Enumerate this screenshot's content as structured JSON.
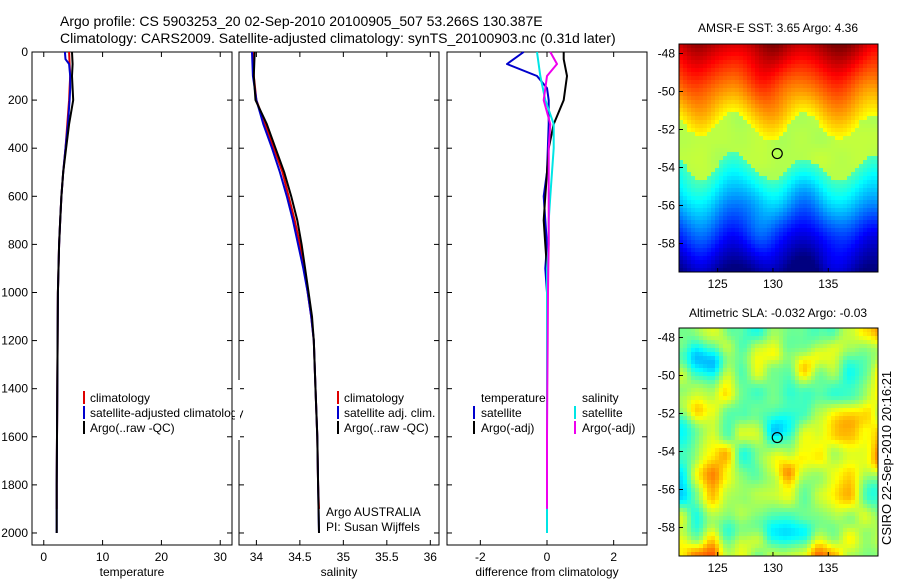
{
  "header": {
    "title_line1": "Argo profile: CS 5903253_20 02-Sep-2010 20100905_507 53.266S 130.387E",
    "title_line2": "Climatology: CARS2009. Satellite-adjusted climatology: synTS_20100903.nc (0.31d later)"
  },
  "side_label": "CSIRO 22-Sep-2010 20:16:21",
  "colors": {
    "red": "#dd0000",
    "blue": "#0000cc",
    "black": "#000000",
    "cyan": "#00e5e5",
    "magenta": "#ee00ee"
  },
  "chart_data": [
    {
      "type": "line",
      "id": "temperature",
      "xlabel": "temperature",
      "ylabel": "",
      "xlim": [
        -2,
        32
      ],
      "ylim": [
        0,
        2050
      ],
      "y_inverted": true,
      "xticks": [
        0,
        10,
        20,
        30
      ],
      "yticks": [
        0,
        200,
        400,
        600,
        800,
        1000,
        1200,
        1400,
        1600,
        1800,
        2000
      ],
      "legend": [
        "climatology",
        "satellite-adjusted climatology",
        "Argo(..raw -QC)"
      ],
      "legend_position": "lower-right",
      "series": [
        {
          "name": "climatology",
          "color": "red",
          "points": [
            [
              4.3,
              0
            ],
            [
              4.4,
              50
            ],
            [
              4.5,
              100
            ],
            [
              4.4,
              150
            ],
            [
              4.3,
              200
            ],
            [
              4.0,
              300
            ],
            [
              3.7,
              400
            ],
            [
              3.3,
              500
            ],
            [
              3.0,
              600
            ],
            [
              2.8,
              700
            ],
            [
              2.6,
              800
            ],
            [
              2.5,
              900
            ],
            [
              2.4,
              1000
            ],
            [
              2.35,
              1200
            ],
            [
              2.3,
              1400
            ],
            [
              2.25,
              1600
            ],
            [
              2.2,
              1800
            ],
            [
              2.2,
              1900
            ]
          ]
        },
        {
          "name": "satellite-adjusted climatology",
          "color": "blue",
          "points": [
            [
              3.6,
              0
            ],
            [
              3.7,
              30
            ],
            [
              4.3,
              50
            ],
            [
              4.5,
              100
            ],
            [
              4.5,
              150
            ],
            [
              4.4,
              200
            ],
            [
              4.1,
              300
            ],
            [
              3.7,
              400
            ],
            [
              3.3,
              500
            ],
            [
              3.0,
              600
            ],
            [
              2.8,
              700
            ],
            [
              2.6,
              800
            ],
            [
              2.5,
              900
            ],
            [
              2.4,
              1000
            ],
            [
              2.35,
              1200
            ],
            [
              2.3,
              1400
            ],
            [
              2.25,
              1600
            ],
            [
              2.2,
              1800
            ],
            [
              2.2,
              2000
            ]
          ]
        },
        {
          "name": "Argo(..raw -QC)",
          "color": "black",
          "points": [
            [
              4.8,
              0
            ],
            [
              4.9,
              50
            ],
            [
              4.8,
              100
            ],
            [
              4.9,
              150
            ],
            [
              5.0,
              200
            ],
            [
              4.3,
              300
            ],
            [
              3.8,
              400
            ],
            [
              3.3,
              500
            ],
            [
              3.0,
              600
            ],
            [
              2.8,
              700
            ],
            [
              2.6,
              800
            ],
            [
              2.5,
              900
            ],
            [
              2.4,
              1000
            ],
            [
              2.35,
              1200
            ],
            [
              2.3,
              1400
            ],
            [
              2.25,
              1600
            ],
            [
              2.2,
              1800
            ],
            [
              2.2,
              2000
            ]
          ]
        }
      ]
    },
    {
      "type": "line",
      "id": "salinity",
      "xlabel": "salinity",
      "ylabel": "",
      "xlim": [
        33.8,
        36.1
      ],
      "ylim": [
        0,
        2050
      ],
      "y_inverted": true,
      "xticks": [
        34,
        34.5,
        35,
        35.5,
        36
      ],
      "yticks": [
        0,
        200,
        400,
        600,
        800,
        1000,
        1200,
        1400,
        1600,
        1800,
        2000
      ],
      "legend": [
        "climatology",
        "satellite adj. clim.",
        "Argo(..raw -QC)"
      ],
      "legend_position": "lower-right",
      "annotations": [
        "Argo AUSTRALIA",
        "PI: Susan Wijffels"
      ],
      "series": [
        {
          "name": "climatology",
          "color": "red",
          "points": [
            [
              33.96,
              0
            ],
            [
              33.97,
              100
            ],
            [
              34.0,
              200
            ],
            [
              34.1,
              300
            ],
            [
              34.2,
              400
            ],
            [
              34.3,
              500
            ],
            [
              34.37,
              600
            ],
            [
              34.44,
              700
            ],
            [
              34.5,
              800
            ],
            [
              34.55,
              900
            ],
            [
              34.59,
              1000
            ],
            [
              34.63,
              1100
            ],
            [
              34.66,
              1200
            ],
            [
              34.68,
              1400
            ],
            [
              34.7,
              1600
            ],
            [
              34.71,
              1800
            ],
            [
              34.72,
              1900
            ]
          ]
        },
        {
          "name": "satellite adj. clim.",
          "color": "blue",
          "points": [
            [
              33.95,
              0
            ],
            [
              33.96,
              100
            ],
            [
              34.0,
              200
            ],
            [
              34.08,
              300
            ],
            [
              34.18,
              400
            ],
            [
              34.27,
              500
            ],
            [
              34.35,
              600
            ],
            [
              34.42,
              700
            ],
            [
              34.48,
              800
            ],
            [
              34.54,
              900
            ],
            [
              34.59,
              1000
            ],
            [
              34.63,
              1100
            ],
            [
              34.66,
              1200
            ],
            [
              34.68,
              1400
            ],
            [
              34.7,
              1600
            ],
            [
              34.71,
              1800
            ],
            [
              34.72,
              2000
            ]
          ]
        },
        {
          "name": "Argo(..raw -QC)",
          "color": "black",
          "points": [
            [
              33.98,
              0
            ],
            [
              33.97,
              100
            ],
            [
              33.99,
              200
            ],
            [
              34.12,
              300
            ],
            [
              34.22,
              400
            ],
            [
              34.32,
              500
            ],
            [
              34.4,
              600
            ],
            [
              34.47,
              700
            ],
            [
              34.52,
              800
            ],
            [
              34.56,
              900
            ],
            [
              34.6,
              1000
            ],
            [
              34.64,
              1100
            ],
            [
              34.66,
              1200
            ],
            [
              34.68,
              1400
            ],
            [
              34.7,
              1600
            ],
            [
              34.71,
              1800
            ],
            [
              34.72,
              2000
            ]
          ]
        }
      ]
    },
    {
      "type": "line",
      "id": "difference",
      "xlabel": "difference from climatology",
      "ylabel": "",
      "xlim": [
        -3,
        3
      ],
      "ylim": [
        0,
        2050
      ],
      "y_inverted": true,
      "xticks": [
        -2,
        0,
        2
      ],
      "yticks": [
        0,
        200,
        400,
        600,
        800,
        1000,
        1200,
        1400,
        1600,
        1800,
        2000
      ],
      "legend_groups": [
        {
          "heading": "temperature",
          "entries": [
            "satellite",
            "Argo(-adj)"
          ]
        },
        {
          "heading": "salinity",
          "entries": [
            "satellite",
            "Argo(-adj)"
          ]
        }
      ],
      "legend_position": "lower-left",
      "series": [
        {
          "name": "temperature satellite",
          "color": "blue",
          "points": [
            [
              -0.7,
              0
            ],
            [
              -1.2,
              50
            ],
            [
              -0.3,
              100
            ],
            [
              0.0,
              150
            ],
            [
              0.05,
              200
            ],
            [
              0.05,
              300
            ],
            [
              0.0,
              500
            ],
            [
              -0.1,
              600
            ],
            [
              -0.05,
              700
            ],
            [
              0.0,
              800
            ],
            [
              -0.05,
              900
            ],
            [
              0.0,
              1000
            ],
            [
              0.0,
              1200
            ],
            [
              0.0,
              1400
            ],
            [
              0.0,
              1600
            ],
            [
              0.0,
              1800
            ],
            [
              0.0,
              2000
            ]
          ]
        },
        {
          "name": "temperature Argo(-adj)",
          "color": "black",
          "points": [
            [
              0.5,
              0
            ],
            [
              0.5,
              30
            ],
            [
              0.6,
              100
            ],
            [
              0.5,
              200
            ],
            [
              0.2,
              300
            ],
            [
              0.05,
              400
            ],
            [
              0.0,
              500
            ],
            [
              -0.05,
              600
            ],
            [
              -0.1,
              700
            ],
            [
              -0.05,
              800
            ],
            [
              0.0,
              900
            ],
            [
              0.0,
              1000
            ],
            [
              0.0,
              1200
            ],
            [
              0.0,
              1400
            ],
            [
              0.0,
              1600
            ],
            [
              0.0,
              1750
            ]
          ]
        },
        {
          "name": "salinity satellite",
          "color": "cyan",
          "points": [
            [
              -0.3,
              0
            ],
            [
              -0.2,
              100
            ],
            [
              -0.05,
              200
            ],
            [
              0.2,
              300
            ],
            [
              0.2,
              400
            ],
            [
              0.15,
              500
            ],
            [
              0.1,
              600
            ],
            [
              0.05,
              700
            ],
            [
              0.05,
              800
            ],
            [
              0.0,
              900
            ],
            [
              0.0,
              1000
            ],
            [
              0.0,
              1400
            ],
            [
              0.0,
              1800
            ],
            [
              0.0,
              2000
            ]
          ]
        },
        {
          "name": "salinity Argo(-adj)",
          "color": "magenta",
          "points": [
            [
              0.1,
              0
            ],
            [
              0.3,
              50
            ],
            [
              0.0,
              100
            ],
            [
              -0.1,
              200
            ],
            [
              0.1,
              300
            ],
            [
              0.05,
              400
            ],
            [
              0.05,
              500
            ],
            [
              0.05,
              600
            ],
            [
              0.05,
              700
            ],
            [
              0.05,
              800
            ],
            [
              0.04,
              900
            ],
            [
              0.03,
              1000
            ],
            [
              0.02,
              1200
            ],
            [
              0.01,
              1400
            ],
            [
              0.0,
              1600
            ],
            [
              0.0,
              1800
            ],
            [
              0.0,
              1900
            ]
          ]
        }
      ]
    },
    {
      "type": "heatmap",
      "id": "sst_map",
      "title": "AMSR-E SST: 3.65 Argo: 4.36",
      "xlim": [
        121.5,
        139.5
      ],
      "ylim": [
        -59.5,
        -47.5
      ],
      "xticks": [
        125,
        130,
        135
      ],
      "yticks": [
        -48,
        -50,
        -52,
        -54,
        -56,
        -58
      ],
      "marker": {
        "lon": 130.387,
        "lat": -53.266
      }
    },
    {
      "type": "heatmap",
      "id": "sla_map",
      "title": "Altimetric SLA: -0.032 Argo: -0.03",
      "xlim": [
        121.5,
        139.5
      ],
      "ylim": [
        -59.5,
        -47.5
      ],
      "xticks": [
        125,
        130,
        135
      ],
      "yticks": [
        -48,
        -50,
        -52,
        -54,
        -56,
        -58
      ],
      "marker": {
        "lon": 130.387,
        "lat": -53.266
      }
    }
  ]
}
